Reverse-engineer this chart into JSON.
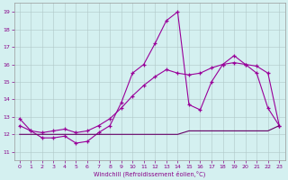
{
  "xlabel": "Windchill (Refroidissement éolien,°C)",
  "bg_color": "#d4f0f0",
  "line_color": "#990099",
  "line_color2": "#660066",
  "grid_color": "#b0c8c8",
  "ylim": [
    10.5,
    19.5
  ],
  "xlim": [
    -0.5,
    23.5
  ],
  "yticks": [
    11,
    12,
    13,
    14,
    15,
    16,
    17,
    18,
    19
  ],
  "xticks": [
    0,
    1,
    2,
    3,
    4,
    5,
    6,
    7,
    8,
    9,
    10,
    11,
    12,
    13,
    14,
    15,
    16,
    17,
    18,
    19,
    20,
    21,
    22,
    23
  ],
  "s1": [
    12.9,
    12.2,
    11.8,
    11.8,
    11.9,
    11.5,
    11.6,
    12.1,
    12.5,
    13.8,
    15.5,
    16.0,
    17.2,
    18.5,
    19.0,
    13.7,
    13.4,
    15.0,
    16.0,
    16.5,
    16.0,
    15.5,
    13.5,
    12.5
  ],
  "s2": [
    12.5,
    12.2,
    12.1,
    12.2,
    12.3,
    12.1,
    12.2,
    12.5,
    12.9,
    13.5,
    14.2,
    14.8,
    15.3,
    15.7,
    15.5,
    15.4,
    15.5,
    15.8,
    16.0,
    16.1,
    16.0,
    15.9,
    15.5,
    12.5
  ],
  "s3": [
    12.0,
    12.0,
    12.0,
    12.0,
    12.0,
    12.0,
    12.0,
    12.0,
    12.0,
    12.0,
    12.0,
    12.0,
    12.0,
    12.0,
    12.0,
    12.2,
    12.2,
    12.2,
    12.2,
    12.2,
    12.2,
    12.2,
    12.2,
    12.5
  ]
}
